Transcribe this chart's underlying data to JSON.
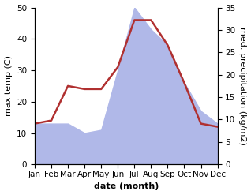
{
  "months": [
    "Jan",
    "Feb",
    "Mar",
    "Apr",
    "May",
    "Jun",
    "Jul",
    "Aug",
    "Sep",
    "Oct",
    "Nov",
    "Dec"
  ],
  "temperature": [
    13,
    14,
    25,
    24,
    24,
    31,
    46,
    46,
    38,
    26,
    13,
    12
  ],
  "precipitation_left": [
    13,
    13,
    13,
    10,
    11,
    30,
    50,
    43,
    38,
    26,
    17,
    13
  ],
  "temp_color": "#b03030",
  "precip_fill_color": "#b0b8e8",
  "left_ylim": [
    0,
    50
  ],
  "right_ylim": [
    0,
    35
  ],
  "left_ylabel": "max temp (C)",
  "right_ylabel": "med. precipitation (kg/m2)",
  "xlabel": "date (month)",
  "label_fontsize": 8,
  "tick_fontsize": 7.5
}
